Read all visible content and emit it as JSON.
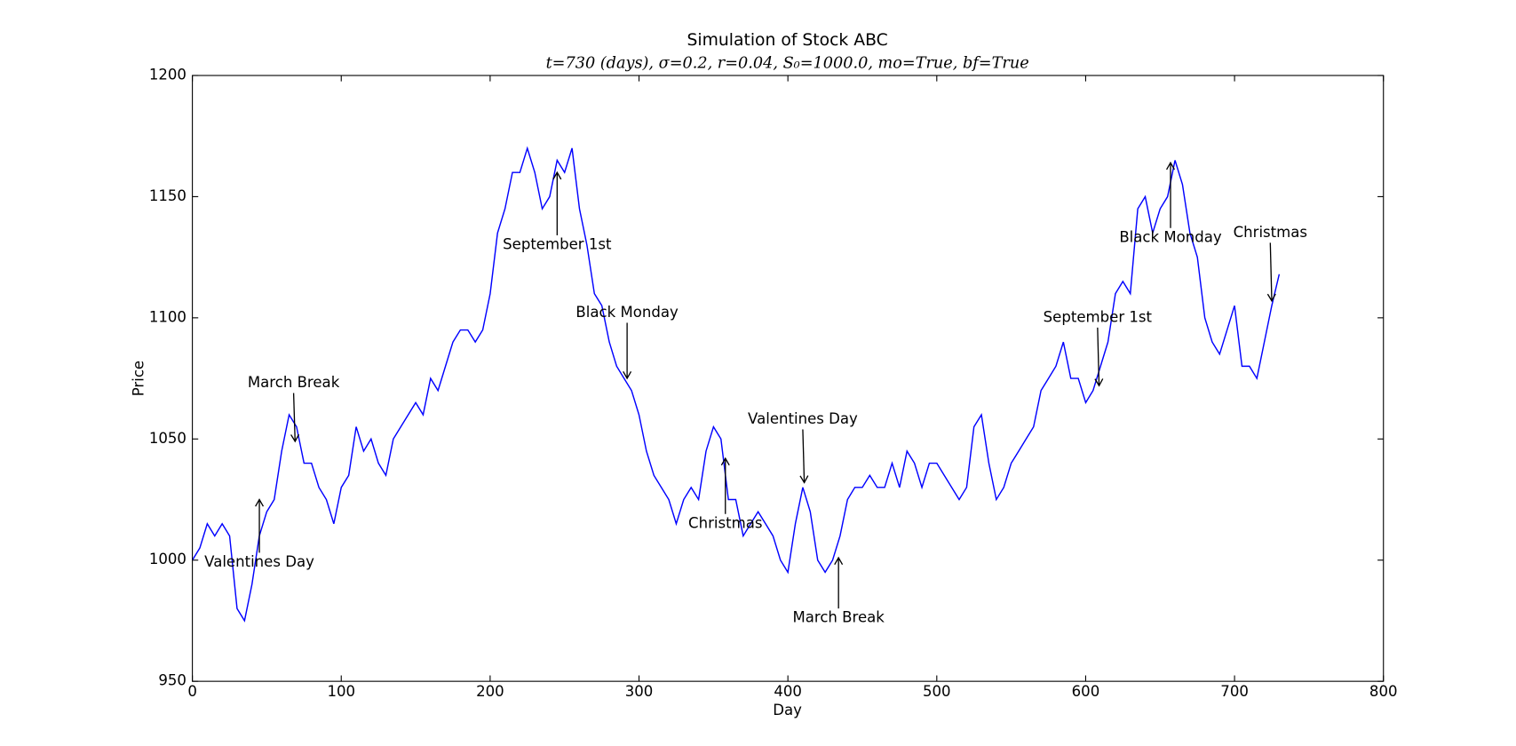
{
  "chart_data": {
    "type": "line",
    "title": "Simulation of Stock ABC",
    "subtitle": "t=730 (days), σ=0.2, r=0.04, S₀=1000.0, mo=True, bf=True",
    "xlabel": "Day",
    "ylabel": "Price",
    "xlim": [
      0,
      800
    ],
    "ylim": [
      950,
      1200
    ],
    "xticks": [
      0,
      100,
      200,
      300,
      400,
      500,
      600,
      700,
      800
    ],
    "yticks": [
      950,
      1000,
      1050,
      1100,
      1150,
      1200
    ],
    "x": [
      0,
      5,
      10,
      15,
      20,
      25,
      30,
      35,
      40,
      45,
      50,
      55,
      60,
      65,
      70,
      75,
      80,
      85,
      90,
      95,
      100,
      105,
      110,
      115,
      120,
      125,
      130,
      135,
      140,
      145,
      150,
      155,
      160,
      165,
      170,
      175,
      180,
      185,
      190,
      195,
      200,
      205,
      210,
      215,
      220,
      225,
      230,
      235,
      240,
      245,
      250,
      255,
      260,
      265,
      270,
      275,
      280,
      285,
      290,
      295,
      300,
      305,
      310,
      315,
      320,
      325,
      330,
      335,
      340,
      345,
      350,
      355,
      360,
      365,
      370,
      375,
      380,
      385,
      390,
      395,
      400,
      405,
      410,
      415,
      420,
      425,
      430,
      435,
      440,
      445,
      450,
      455,
      460,
      465,
      470,
      475,
      480,
      485,
      490,
      495,
      500,
      505,
      510,
      515,
      520,
      525,
      530,
      535,
      540,
      545,
      550,
      555,
      560,
      565,
      570,
      575,
      580,
      585,
      590,
      595,
      600,
      605,
      610,
      615,
      620,
      625,
      630,
      635,
      640,
      645,
      650,
      655,
      660,
      665,
      670,
      675,
      680,
      685,
      690,
      695,
      700,
      705,
      710,
      715,
      720,
      725,
      730
    ],
    "series": [
      {
        "name": "Price",
        "color": "#0000ff",
        "values": [
          1000,
          1005,
          1015,
          1010,
          1015,
          1010,
          980,
          975,
          990,
          1010,
          1020,
          1025,
          1045,
          1060,
          1055,
          1040,
          1040,
          1030,
          1025,
          1015,
          1030,
          1035,
          1055,
          1045,
          1050,
          1040,
          1035,
          1050,
          1055,
          1060,
          1065,
          1060,
          1075,
          1070,
          1080,
          1090,
          1095,
          1095,
          1090,
          1095,
          1110,
          1135,
          1145,
          1160,
          1160,
          1170,
          1160,
          1145,
          1150,
          1165,
          1160,
          1170,
          1145,
          1130,
          1110,
          1105,
          1090,
          1080,
          1075,
          1070,
          1060,
          1045,
          1035,
          1030,
          1025,
          1015,
          1025,
          1030,
          1025,
          1045,
          1055,
          1050,
          1025,
          1025,
          1010,
          1015,
          1020,
          1015,
          1010,
          1000,
          995,
          1015,
          1030,
          1020,
          1000,
          995,
          1000,
          1010,
          1025,
          1030,
          1030,
          1035,
          1030,
          1030,
          1040,
          1030,
          1045,
          1040,
          1030,
          1040,
          1040,
          1035,
          1030,
          1025,
          1030,
          1055,
          1060,
          1040,
          1025,
          1030,
          1040,
          1045,
          1050,
          1055,
          1070,
          1075,
          1080,
          1090,
          1075,
          1075,
          1065,
          1070,
          1080,
          1090,
          1110,
          1115,
          1110,
          1145,
          1150,
          1135,
          1145,
          1150,
          1165,
          1155,
          1135,
          1125,
          1100,
          1090,
          1085,
          1095,
          1105,
          1080,
          1080,
          1075,
          1090,
          1105,
          1118
        ]
      }
    ],
    "annotations": [
      {
        "text": "Valentines Day",
        "x": 45,
        "y": 1025,
        "xytext": [
          45,
          999
        ]
      },
      {
        "text": "March Break",
        "x": 69,
        "y": 1049,
        "xytext": [
          68,
          1073
        ]
      },
      {
        "text": "September 1st",
        "x": 245,
        "y": 1160,
        "xytext": [
          245,
          1130
        ]
      },
      {
        "text": "Black Monday",
        "x": 292,
        "y": 1075,
        "xytext": [
          292,
          1102
        ]
      },
      {
        "text": "Christmas",
        "x": 358,
        "y": 1042,
        "xytext": [
          358,
          1015
        ]
      },
      {
        "text": "Valentines Day",
        "x": 411,
        "y": 1032,
        "xytext": [
          410,
          1058
        ]
      },
      {
        "text": "March Break",
        "x": 434,
        "y": 1001,
        "xytext": [
          434,
          976
        ]
      },
      {
        "text": "September 1st",
        "x": 609,
        "y": 1072,
        "xytext": [
          608,
          1100
        ]
      },
      {
        "text": "Black Monday",
        "x": 657,
        "y": 1164,
        "xytext": [
          657,
          1133
        ]
      },
      {
        "text": "Christmas",
        "x": 725,
        "y": 1107,
        "xytext": [
          724,
          1135
        ]
      }
    ]
  }
}
